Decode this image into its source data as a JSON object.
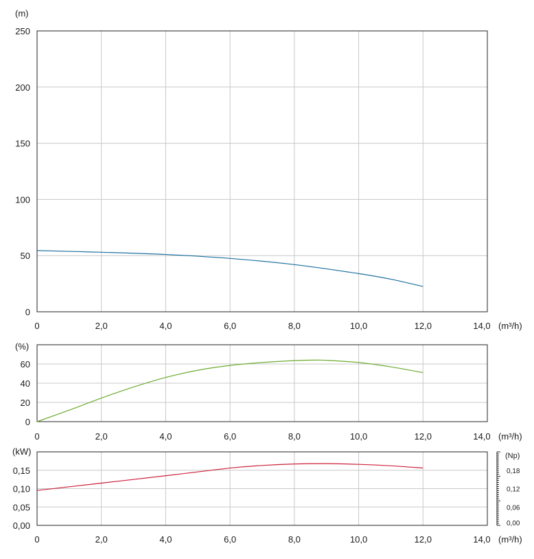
{
  "chart_data": [
    {
      "type": "line",
      "panel": "head",
      "ylabel": "(m)",
      "xunit": "(m³/h)",
      "xlim": [
        0,
        14
      ],
      "ylim": [
        0,
        250
      ],
      "x_ticks": [
        "0",
        "2,0",
        "4,0",
        "6,0",
        "8,0",
        "10,0",
        "12,0",
        "14,0"
      ],
      "y_ticks": [
        "0",
        "50",
        "100",
        "150",
        "200",
        "250"
      ],
      "grid": true,
      "series": [
        {
          "color": "#1b6fa0",
          "x": [
            0,
            2,
            4,
            6,
            8,
            10,
            11,
            12
          ],
          "y": [
            54.5,
            53,
            51,
            47.5,
            42,
            34,
            29,
            22.5
          ]
        }
      ]
    },
    {
      "type": "line",
      "panel": "efficiency",
      "ylabel": "(%)",
      "xunit": "(m³/h)",
      "xlim": [
        0,
        14
      ],
      "ylim": [
        0,
        80
      ],
      "x_ticks": [
        "0",
        "2,0",
        "4,0",
        "6,0",
        "8,0",
        "10,0",
        "12,0",
        "14,0"
      ],
      "y_ticks": [
        "0",
        "20",
        "40",
        "60"
      ],
      "grid": true,
      "series": [
        {
          "color": "#6aaa2e",
          "x": [
            0,
            1,
            2,
            3,
            4,
            5,
            6,
            7,
            8,
            8.6,
            9,
            10,
            11,
            12
          ],
          "y": [
            0,
            12,
            24.5,
            36,
            46,
            53.5,
            58.5,
            61.5,
            63.5,
            64,
            63.8,
            61.5,
            57,
            51
          ]
        }
      ]
    },
    {
      "type": "line",
      "panel": "power",
      "ylabel": "(kW)",
      "y2label": "(Np)",
      "xunit": "(m³/h)",
      "xlim": [
        0,
        14
      ],
      "ylim": [
        0,
        0.2
      ],
      "x_ticks": [
        "0",
        "2,0",
        "4,0",
        "6,0",
        "8,0",
        "10,0",
        "12,0",
        "14,0"
      ],
      "y_ticks": [
        "0,00",
        "0,05",
        "0,10",
        "0,15"
      ],
      "y2_ticks": [
        "0,00",
        "0,06",
        "0,12",
        "0,18"
      ],
      "grid": true,
      "series": [
        {
          "color": "#cc1f3a",
          "x": [
            0,
            2,
            4,
            6,
            7,
            8,
            9,
            10,
            11,
            12
          ],
          "y": [
            0.095,
            0.115,
            0.135,
            0.156,
            0.163,
            0.167,
            0.168,
            0.166,
            0.162,
            0.156
          ]
        }
      ]
    }
  ]
}
